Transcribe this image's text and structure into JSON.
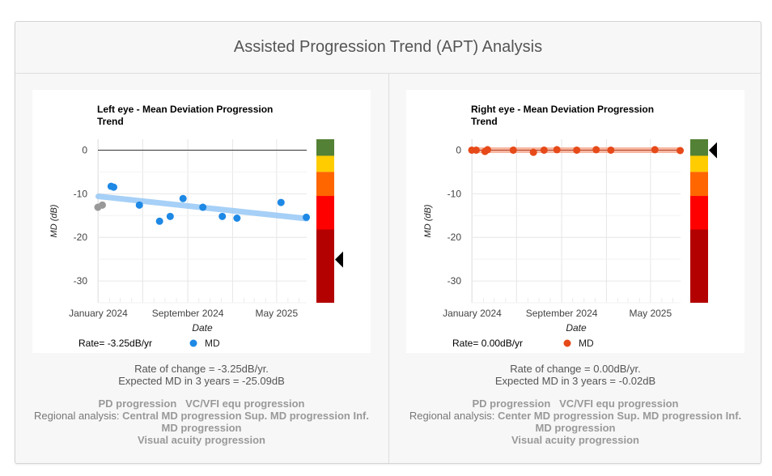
{
  "page": {
    "title": "Assisted Progression Trend (APT) Analysis"
  },
  "panels": [
    {
      "eye": "left",
      "rate_of_change": "Rate of change = -3.25dB/yr.",
      "expected_md": "Expected MD in 3 years = -25.09dB",
      "progression_line1a": "PD progression",
      "progression_line1b": "VC/VFI equ progression",
      "regional_label": "Regional analysis:",
      "regional_items": "Central MD progression Sup. MD progression Inf. MD progression",
      "visual_acuity": "Visual acuity progression"
    },
    {
      "eye": "right",
      "rate_of_change": "Rate of change = 0.00dB/yr.",
      "expected_md": "Expected MD in 3 years = -0.02dB",
      "progression_line1a": "PD progression",
      "progression_line1b": "VC/VFI equ progression",
      "regional_label": "Regional analysis:",
      "regional_items": "Center MD progression Sup. MD progression Inf. MD progression",
      "visual_acuity": "Visual acuity progression"
    }
  ],
  "chart_data": [
    {
      "type": "scatter",
      "title": "Left eye - Mean Deviation Progression Trend",
      "xlabel": "Date",
      "ylabel": "MD (dB)",
      "xlim": [
        "2023-12-31",
        "2025-07-22"
      ],
      "ylim": [
        -35,
        2.5
      ],
      "yticks": [
        0,
        -10,
        -20,
        -30
      ],
      "xtick_labels": [
        {
          "label": "January 2024",
          "date": "2024-01-01"
        },
        {
          "label": "September 2024",
          "date": "2024-09-01"
        },
        {
          "label": "May 2025",
          "date": "2025-05-01"
        }
      ],
      "grid": true,
      "legend_position": "bottom",
      "legend_rate": "Rate= -3.25dB/yr",
      "series": [
        {
          "name": "MD",
          "color": "#1e88e5",
          "points": [
            {
              "x": "2024-02-05",
              "y": -8.3
            },
            {
              "x": "2024-02-12",
              "y": -8.5
            },
            {
              "x": "2024-04-22",
              "y": -12.6
            },
            {
              "x": "2024-06-16",
              "y": -16.3
            },
            {
              "x": "2024-07-15",
              "y": -15.2
            },
            {
              "x": "2024-08-19",
              "y": -11.1
            },
            {
              "x": "2024-10-12",
              "y": -13.1
            },
            {
              "x": "2024-12-04",
              "y": -15.2
            },
            {
              "x": "2025-01-13",
              "y": -15.6
            },
            {
              "x": "2025-05-13",
              "y": -12.0
            },
            {
              "x": "2025-07-21",
              "y": -15.4
            }
          ]
        },
        {
          "color": "#999999",
          "points": [
            {
              "x": "2023-12-31",
              "y": -13.1
            },
            {
              "x": "2024-01-12",
              "y": -12.6
            }
          ]
        }
      ],
      "trend": {
        "color": "#90c4f5",
        "start": {
          "x": "2024-01-01",
          "y": -10.6
        },
        "end": {
          "x": "2025-07-21",
          "y": -15.7
        }
      },
      "severity_bands": [
        {
          "color": "#538135",
          "from": 2.5,
          "to": -1.3
        },
        {
          "color": "#ffcc00",
          "from": -1.3,
          "to": -5
        },
        {
          "color": "#ff6600",
          "from": -5,
          "to": -10.5
        },
        {
          "color": "#ff0000",
          "from": -10.5,
          "to": -18.2
        },
        {
          "color": "#b30000",
          "from": -18.2,
          "to": -35
        }
      ],
      "severity_marker": -25.09
    },
    {
      "type": "scatter",
      "title": "Right eye - Mean Deviation Progression Trend",
      "xlabel": "Date",
      "ylabel": "MD (dB)",
      "xlim": [
        "2023-12-31",
        "2025-07-22"
      ],
      "ylim": [
        -35,
        2.5
      ],
      "yticks": [
        0,
        -10,
        -20,
        -30
      ],
      "xtick_labels": [
        {
          "label": "January 2024",
          "date": "2024-01-01"
        },
        {
          "label": "September 2024",
          "date": "2024-09-01"
        },
        {
          "label": "May 2025",
          "date": "2025-05-01"
        }
      ],
      "grid": true,
      "legend_position": "bottom",
      "legend_rate": "Rate= 0.00dB/yr",
      "series": [
        {
          "name": "MD",
          "color": "#e64a19",
          "points": [
            {
              "x": "2023-12-31",
              "y": 0
            },
            {
              "x": "2024-01-12",
              "y": 0
            },
            {
              "x": "2024-02-05",
              "y": -0.3
            },
            {
              "x": "2024-02-12",
              "y": 0.1
            },
            {
              "x": "2024-04-22",
              "y": 0
            },
            {
              "x": "2024-06-16",
              "y": -0.5
            },
            {
              "x": "2024-07-15",
              "y": 0
            },
            {
              "x": "2024-08-19",
              "y": 0.1
            },
            {
              "x": "2024-10-12",
              "y": 0
            },
            {
              "x": "2024-12-04",
              "y": 0.1
            },
            {
              "x": "2025-01-13",
              "y": 0
            },
            {
              "x": "2025-05-13",
              "y": 0.1
            },
            {
              "x": "2025-07-21",
              "y": -0.1
            }
          ]
        }
      ],
      "trend": {
        "color": "#f4a58a",
        "start": {
          "x": "2023-12-31",
          "y": 0
        },
        "end": {
          "x": "2025-07-21",
          "y": 0
        }
      },
      "severity_bands": [
        {
          "color": "#538135",
          "from": 2.5,
          "to": -1.3
        },
        {
          "color": "#ffcc00",
          "from": -1.3,
          "to": -5
        },
        {
          "color": "#ff6600",
          "from": -5,
          "to": -10.5
        },
        {
          "color": "#ff0000",
          "from": -10.5,
          "to": -18.2
        },
        {
          "color": "#b30000",
          "from": -18.2,
          "to": -35
        }
      ],
      "severity_marker": -0.02
    }
  ]
}
